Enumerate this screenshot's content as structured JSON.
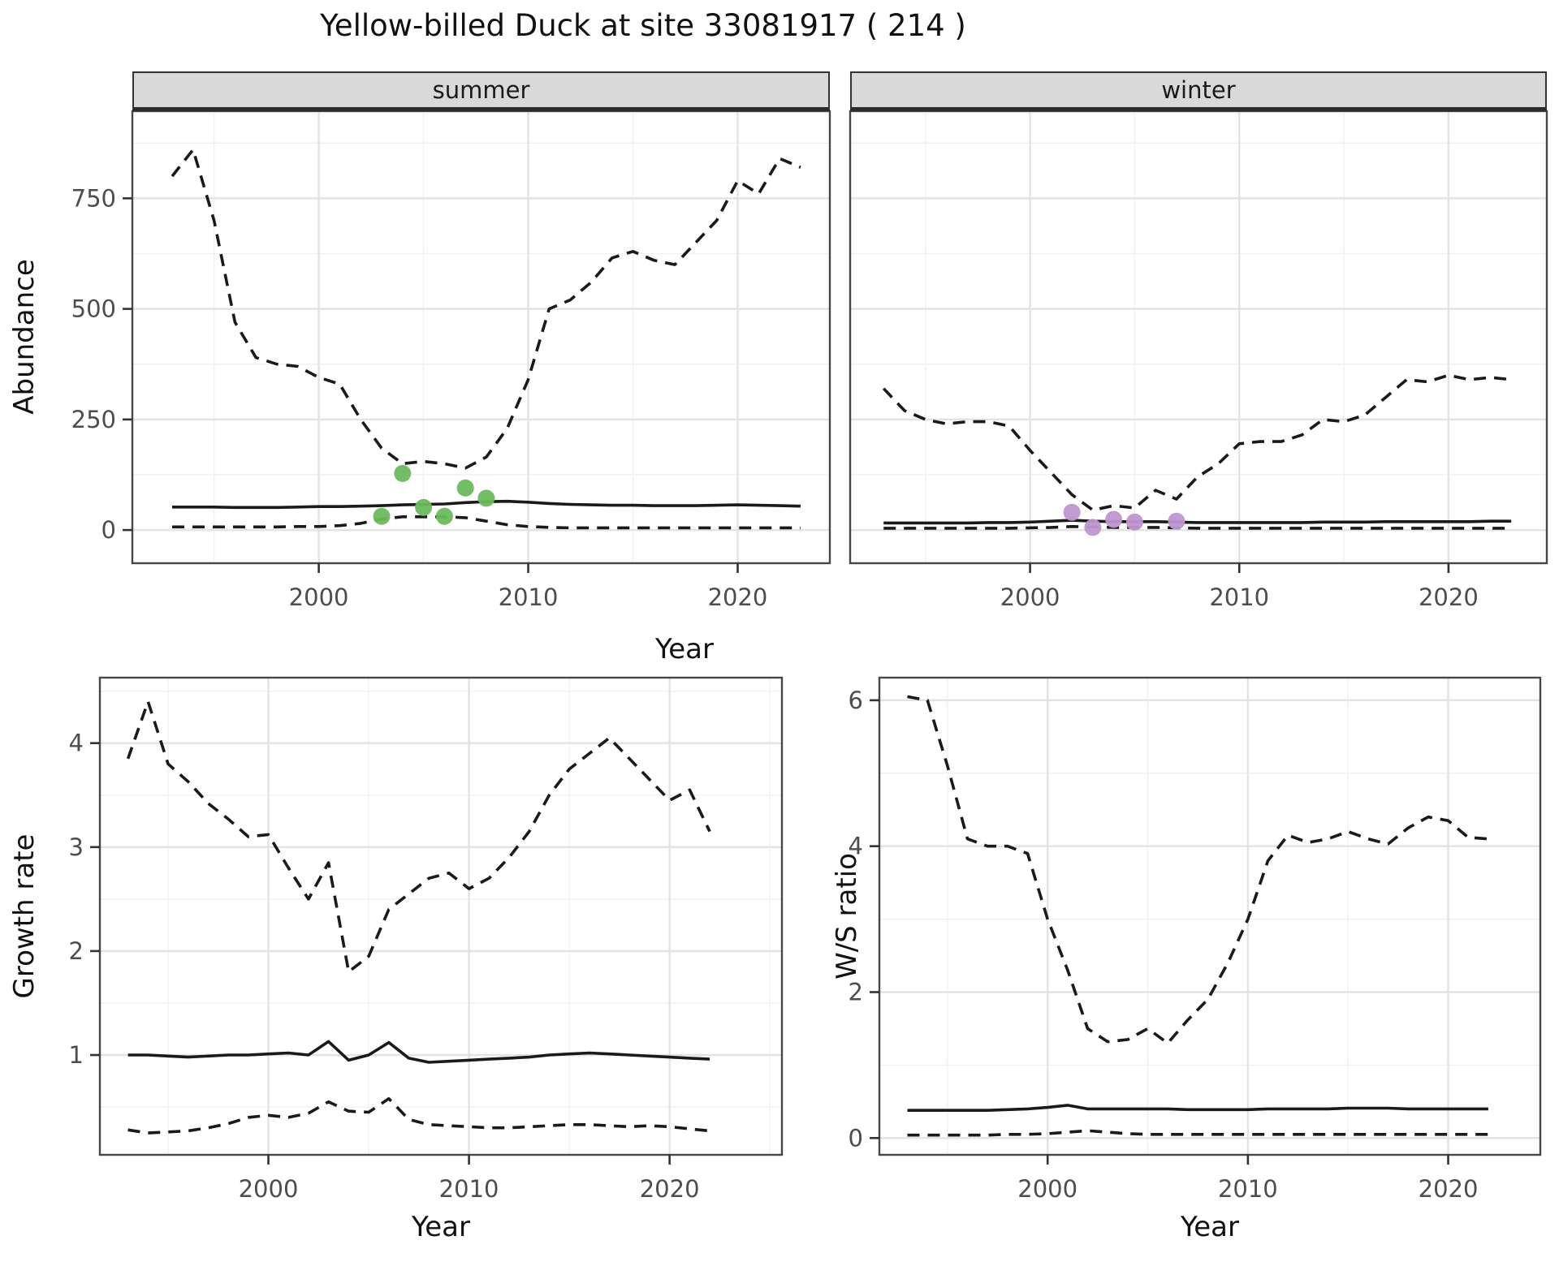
{
  "title": "Yellow-billed Duck at site 33081917 ( 214 )",
  "colors": {
    "summer_points": "#6bbb5c",
    "winter_points": "#be96cf",
    "line": "#1a1a1a",
    "grid_major": "#e3e3e3",
    "grid_minor": "#f1f1f1",
    "strip_bg": "#d9d9d9",
    "panel_border": "#474747",
    "tick_mark": "#333333",
    "tick_text": "#4d4d4d"
  },
  "chart_data": [
    {
      "type": "line",
      "facet": "summer",
      "xlabel": "Year",
      "ylabel": "Abundance",
      "grid": true,
      "legend": "none",
      "x": [
        1993,
        1994,
        1995,
        1996,
        1997,
        1998,
        1999,
        2000,
        2001,
        2002,
        2003,
        2004,
        2005,
        2006,
        2007,
        2008,
        2009,
        2010,
        2011,
        2012,
        2013,
        2014,
        2015,
        2016,
        2017,
        2018,
        2019,
        2020,
        2021,
        2022,
        2023
      ],
      "series": [
        {
          "name": "upper-ci",
          "style": "dashed",
          "values": [
            800,
            860,
            700,
            470,
            390,
            375,
            370,
            345,
            330,
            250,
            185,
            150,
            155,
            150,
            140,
            165,
            230,
            340,
            500,
            520,
            560,
            615,
            630,
            610,
            600,
            650,
            700,
            790,
            760,
            840,
            820
          ]
        },
        {
          "name": "median",
          "style": "solid",
          "values": [
            52,
            52,
            52,
            51,
            51,
            51,
            52,
            53,
            53,
            54,
            55,
            57,
            58,
            59,
            62,
            64,
            65,
            63,
            60,
            58,
            57,
            56,
            56,
            55,
            55,
            55,
            56,
            57,
            56,
            55,
            54
          ]
        },
        {
          "name": "lower-ci",
          "style": "dashed",
          "values": [
            7,
            7,
            7,
            7,
            7,
            7,
            8,
            8,
            10,
            15,
            25,
            30,
            30,
            30,
            28,
            20,
            12,
            8,
            6,
            5,
            5,
            5,
            5,
            5,
            5,
            5,
            5,
            5,
            5,
            5,
            5
          ]
        }
      ],
      "points": {
        "name": "observed-summer-counts",
        "color": "#6bbb5c",
        "data": [
          [
            2003,
            31
          ],
          [
            2004,
            128
          ],
          [
            2005,
            51
          ],
          [
            2006,
            31
          ],
          [
            2007,
            95
          ],
          [
            2008,
            72
          ]
        ]
      },
      "xlim": [
        1991.1,
        2024.4
      ],
      "ylim": [
        -75,
        947
      ],
      "xticks": [
        2000,
        2010,
        2020
      ],
      "xticks_minor": [
        1995,
        2005,
        2015
      ],
      "yticks": [
        0,
        250,
        500,
        750
      ],
      "yticks_minor": [
        125,
        375,
        625,
        875
      ]
    },
    {
      "type": "line",
      "facet": "winter",
      "xlabel": "Year",
      "ylabel": "Abundance",
      "grid": true,
      "legend": "none",
      "x": [
        1993,
        1994,
        1995,
        1996,
        1997,
        1998,
        1999,
        2000,
        2001,
        2002,
        2003,
        2004,
        2005,
        2006,
        2007,
        2008,
        2009,
        2010,
        2011,
        2012,
        2013,
        2014,
        2015,
        2016,
        2017,
        2018,
        2019,
        2020,
        2021,
        2022,
        2023
      ],
      "series": [
        {
          "name": "upper-ci",
          "style": "dashed",
          "values": [
            320,
            270,
            250,
            240,
            245,
            245,
            235,
            180,
            130,
            80,
            45,
            55,
            50,
            90,
            70,
            120,
            150,
            195,
            200,
            200,
            215,
            250,
            245,
            260,
            300,
            340,
            335,
            350,
            340,
            345,
            340
          ]
        },
        {
          "name": "median",
          "style": "solid",
          "values": [
            16,
            16,
            16,
            16,
            16,
            17,
            17,
            18,
            20,
            22,
            20,
            19,
            19,
            19,
            18,
            17,
            17,
            17,
            17,
            17,
            17,
            18,
            18,
            18,
            19,
            19,
            19,
            19,
            19,
            20,
            20
          ]
        },
        {
          "name": "lower-ci",
          "style": "dashed",
          "values": [
            4,
            4,
            4,
            4,
            4,
            4,
            4,
            5,
            6,
            8,
            7,
            6,
            6,
            6,
            5,
            4,
            4,
            4,
            4,
            4,
            4,
            4,
            4,
            4,
            4,
            4,
            4,
            4,
            4,
            4,
            4
          ]
        }
      ],
      "points": {
        "name": "observed-winter-counts",
        "color": "#be96cf",
        "data": [
          [
            2002,
            40
          ],
          [
            2003,
            6
          ],
          [
            2004,
            24
          ],
          [
            2005,
            18
          ],
          [
            2007,
            20
          ]
        ]
      },
      "xlim": [
        1991.4,
        2024.7
      ],
      "ylim": [
        -75,
        947
      ],
      "xticks": [
        2000,
        2010,
        2020
      ],
      "xticks_minor": [
        1995,
        2005,
        2015
      ],
      "yticks": [
        0,
        250,
        500,
        750
      ],
      "yticks_minor": [
        125,
        375,
        625,
        875
      ]
    },
    {
      "type": "line",
      "facet": "",
      "xlabel": "Year",
      "ylabel": "Growth rate",
      "grid": true,
      "legend": "none",
      "x": [
        1993,
        1994,
        1995,
        1996,
        1997,
        1998,
        1999,
        2000,
        2001,
        2002,
        2003,
        2004,
        2005,
        2006,
        2007,
        2008,
        2009,
        2010,
        2011,
        2012,
        2013,
        2014,
        2015,
        2016,
        2017,
        2018,
        2019,
        2020,
        2021,
        2022
      ],
      "series": [
        {
          "name": "upper-ci",
          "style": "dashed",
          "values": [
            3.85,
            4.4,
            3.8,
            3.63,
            3.42,
            3.27,
            3.1,
            3.12,
            2.8,
            2.5,
            2.85,
            1.8,
            1.95,
            2.4,
            2.55,
            2.7,
            2.75,
            2.6,
            2.7,
            2.9,
            3.15,
            3.5,
            3.75,
            3.9,
            4.05,
            3.85,
            3.65,
            3.45,
            3.55,
            3.15
          ]
        },
        {
          "name": "median",
          "style": "solid",
          "values": [
            1.0,
            1.0,
            0.99,
            0.98,
            0.99,
            1.0,
            1.0,
            1.01,
            1.02,
            1.0,
            1.13,
            0.95,
            1.0,
            1.12,
            0.97,
            0.93,
            0.94,
            0.95,
            0.96,
            0.97,
            0.98,
            1.0,
            1.01,
            1.02,
            1.01,
            1.0,
            0.99,
            0.98,
            0.97,
            0.96
          ]
        },
        {
          "name": "lower-ci",
          "style": "dashed",
          "values": [
            0.28,
            0.25,
            0.26,
            0.27,
            0.3,
            0.34,
            0.4,
            0.42,
            0.4,
            0.44,
            0.55,
            0.46,
            0.45,
            0.58,
            0.38,
            0.33,
            0.32,
            0.31,
            0.3,
            0.3,
            0.31,
            0.32,
            0.33,
            0.33,
            0.32,
            0.31,
            0.32,
            0.31,
            0.29,
            0.27
          ]
        }
      ],
      "xlim": [
        1991.6,
        2025.6
      ],
      "ylim": [
        0.04,
        4.63
      ],
      "xticks": [
        2000,
        2010,
        2020
      ],
      "xticks_minor": [
        1995,
        2005,
        2015,
        2025
      ],
      "yticks": [
        1,
        2,
        3,
        4
      ],
      "yticks_minor": [
        0.5,
        1.5,
        2.5,
        3.5,
        4.5
      ]
    },
    {
      "type": "line",
      "facet": "",
      "xlabel": "Year",
      "ylabel": "W/S ratio",
      "grid": true,
      "legend": "none",
      "x": [
        1993,
        1994,
        1995,
        1996,
        1997,
        1998,
        1999,
        2000,
        2001,
        2002,
        2003,
        2004,
        2005,
        2006,
        2007,
        2008,
        2009,
        2010,
        2011,
        2012,
        2013,
        2014,
        2015,
        2016,
        2017,
        2018,
        2019,
        2020,
        2021,
        2022
      ],
      "series": [
        {
          "name": "upper-ci",
          "style": "dashed",
          "values": [
            6.05,
            6.0,
            5.1,
            4.1,
            4.0,
            4.0,
            3.9,
            3.0,
            2.3,
            1.5,
            1.32,
            1.35,
            1.5,
            1.3,
            1.62,
            1.9,
            2.4,
            3.0,
            3.8,
            4.15,
            4.05,
            4.1,
            4.2,
            4.1,
            4.03,
            4.25,
            4.4,
            4.35,
            4.12,
            4.1
          ]
        },
        {
          "name": "median",
          "style": "solid",
          "values": [
            0.38,
            0.38,
            0.38,
            0.38,
            0.38,
            0.39,
            0.4,
            0.42,
            0.45,
            0.4,
            0.4,
            0.4,
            0.4,
            0.4,
            0.39,
            0.39,
            0.39,
            0.39,
            0.4,
            0.4,
            0.4,
            0.4,
            0.41,
            0.41,
            0.41,
            0.4,
            0.4,
            0.4,
            0.4,
            0.4
          ]
        },
        {
          "name": "lower-ci",
          "style": "dashed",
          "values": [
            0.04,
            0.04,
            0.04,
            0.04,
            0.04,
            0.05,
            0.05,
            0.06,
            0.08,
            0.1,
            0.08,
            0.06,
            0.05,
            0.05,
            0.05,
            0.05,
            0.05,
            0.05,
            0.05,
            0.05,
            0.05,
            0.05,
            0.05,
            0.05,
            0.05,
            0.05,
            0.05,
            0.05,
            0.05,
            0.05
          ]
        }
      ],
      "xlim": [
        1991.6,
        2024.6
      ],
      "ylim": [
        -0.23,
        6.31
      ],
      "xticks": [
        2000,
        2010,
        2020
      ],
      "xticks_minor": [
        1995,
        2005,
        2015
      ],
      "yticks": [
        0,
        2,
        4,
        6
      ],
      "yticks_minor": [
        1,
        3,
        5
      ]
    }
  ]
}
